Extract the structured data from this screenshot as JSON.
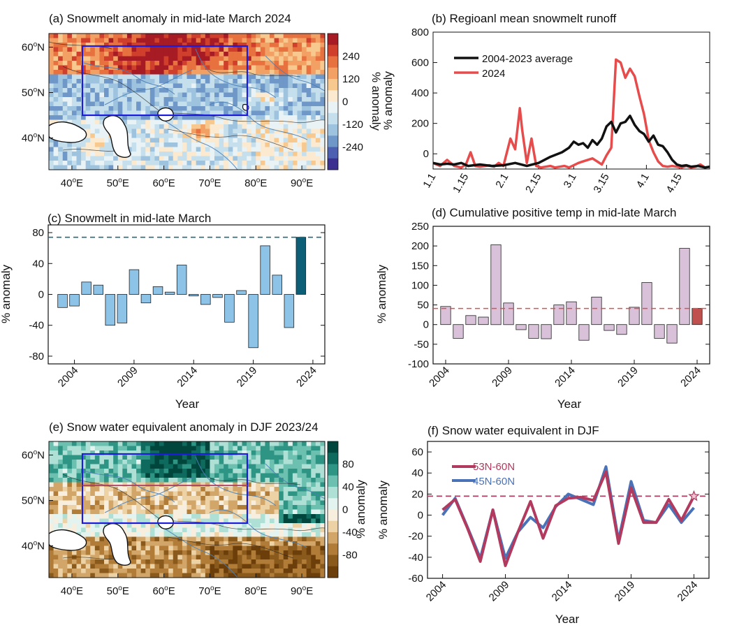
{
  "panel_a": {
    "title": "(a) Snowmelt anomaly in mid-late March 2024",
    "lat_labels": [
      "60",
      "50",
      "40"
    ],
    "lon_labels": [
      "40",
      "50",
      "60",
      "70",
      "80",
      "90"
    ],
    "colorbar_label": "% anomaly",
    "colorbar_ticks": [
      "240",
      "120",
      "0",
      "-120",
      "-240"
    ],
    "colors": [
      "#3b2f8f",
      "#4c5fb0",
      "#6f97c8",
      "#9dc3df",
      "#c6dfec",
      "#e9f2f5",
      "#fbead0",
      "#f7c98f",
      "#f2a063",
      "#e7713f",
      "#cf3f2c",
      "#a71b25"
    ]
  },
  "panel_b": {
    "title": "(b) Regioanl mean snowmelt runoff",
    "ylabel": "% anomaly",
    "yticks": [
      "800",
      "600",
      "400",
      "200",
      "0"
    ],
    "xticks": [
      "1.1",
      "1.15",
      "2.1",
      "2.15",
      "3.1",
      "3.15",
      "4.1",
      "4.15"
    ],
    "legend": [
      "2004-2023 average",
      "2024"
    ],
    "colors": {
      "average": "#111111",
      "y2024": "#e74c4c"
    }
  },
  "panel_e": {
    "title": "(e) Snow water equivalent anomaly in DJF 2023/24",
    "lat_labels": [
      "60",
      "50",
      "40"
    ],
    "lon_labels": [
      "40",
      "50",
      "60",
      "70",
      "80",
      "90"
    ],
    "colorbar_label": "% anomaly",
    "colorbar_ticks": [
      "80",
      "40",
      "0",
      "-40",
      "-80"
    ],
    "colors": [
      "#6b3e0a",
      "#8a5a1c",
      "#b07c38",
      "#d2a668",
      "#ecd2a4",
      "#f8eedd",
      "#e3f3ef",
      "#aee0d6",
      "#6cc0b0",
      "#2e9585",
      "#0f6a5e",
      "#01463d"
    ]
  },
  "chart_data": [
    {
      "panel": "a",
      "type": "heatmap",
      "title": "(a) Snowmelt anomaly in mid-late March 2024",
      "x_range": [
        35,
        95
      ],
      "y_range": [
        33,
        63
      ],
      "colorbar_range": [
        -300,
        300
      ],
      "colorbar_label": "% anomaly",
      "box": {
        "lon": [
          42,
          78
        ],
        "lat": [
          45,
          60
        ]
      }
    },
    {
      "panel": "b",
      "type": "line",
      "title": "(b) Regioanl mean snowmelt runoff",
      "ylabel": "% anomaly",
      "ylim": [
        -100,
        800
      ],
      "x_day_range": [
        0,
        118
      ],
      "series": [
        {
          "name": "2004-2023 average",
          "x": [
            0,
            3,
            6,
            9,
            12,
            15,
            20,
            25,
            30,
            35,
            40,
            45,
            50,
            55,
            58,
            60,
            62,
            64,
            66,
            68,
            70,
            72,
            74,
            76,
            78,
            80,
            82,
            84,
            86,
            88,
            90,
            92,
            94,
            96,
            98,
            100,
            102,
            104,
            106,
            108,
            110,
            113,
            116,
            118
          ],
          "y": [
            -60,
            -70,
            -65,
            -70,
            -60,
            -80,
            -70,
            -80,
            -75,
            -60,
            -80,
            -60,
            -20,
            10,
            40,
            80,
            60,
            70,
            40,
            90,
            60,
            100,
            180,
            210,
            140,
            200,
            210,
            250,
            190,
            150,
            130,
            80,
            120,
            60,
            50,
            10,
            -40,
            -70,
            -80,
            -75,
            -85,
            -80,
            -90,
            -85
          ]
        },
        {
          "name": "2024",
          "x": [
            0,
            3,
            6,
            9,
            12,
            14,
            16,
            18,
            20,
            22,
            24,
            26,
            28,
            30,
            33,
            35,
            37,
            38,
            40,
            42,
            44,
            46,
            48,
            50,
            52,
            54,
            56,
            58,
            60,
            62,
            64,
            66,
            68,
            70,
            72,
            74,
            76,
            78,
            80,
            82,
            84,
            86,
            88,
            90,
            92,
            94,
            96,
            98,
            100,
            102,
            104,
            106,
            108,
            110,
            112,
            114,
            116,
            118
          ],
          "y": [
            -60,
            -80,
            -40,
            -80,
            -90,
            -70,
            10,
            -80,
            -85,
            -80,
            -75,
            -85,
            -60,
            -80,
            100,
            30,
            300,
            160,
            -60,
            100,
            -80,
            -90,
            -85,
            -80,
            -90,
            -85,
            -80,
            -90,
            -75,
            -60,
            -50,
            -40,
            -30,
            -50,
            -70,
            -10,
            40,
            620,
            600,
            500,
            560,
            510,
            380,
            260,
            90,
            10,
            -50,
            -80,
            -85,
            -80,
            -85,
            -90,
            -80,
            -90,
            -85,
            -70,
            -90,
            -85
          ]
        }
      ]
    },
    {
      "panel": "c",
      "type": "bar",
      "title": "(c) Snowmelt in mid-late March",
      "xlabel": "Year",
      "ylabel": "% anomaly",
      "ylim": [
        -90,
        90
      ],
      "yticks": [
        80,
        40,
        0,
        -40,
        -80
      ],
      "xticks": [
        2004,
        2009,
        2014,
        2019,
        2024
      ],
      "categories": [
        2003,
        2004,
        2005,
        2006,
        2007,
        2008,
        2009,
        2010,
        2011,
        2012,
        2013,
        2014,
        2015,
        2016,
        2017,
        2018,
        2019,
        2020,
        2021,
        2022,
        2023,
        2024
      ],
      "values": [
        -17,
        -15,
        16,
        12,
        -40,
        -37,
        32,
        -11,
        10,
        3,
        38,
        -2,
        -13,
        -4,
        -36,
        5,
        -69,
        63,
        25,
        -43,
        74,
        0
      ],
      "highlight_index": 20,
      "reference_line": 74,
      "bar_color": "#8ec3e8",
      "highlight_color": "#0d5f78",
      "line_color": "#1f6f80"
    },
    {
      "panel": "d",
      "type": "bar",
      "title": "(d) Cumulative positive temp in mid-late March",
      "xlabel": "Year",
      "ylabel": "% anomaly",
      "ylim": [
        -100,
        250
      ],
      "yticks": [
        250,
        200,
        150,
        100,
        50,
        0,
        -50,
        -100
      ],
      "xticks": [
        2004,
        2009,
        2014,
        2019,
        2024
      ],
      "categories": [
        2004,
        2005,
        2006,
        2007,
        2008,
        2009,
        2010,
        2011,
        2012,
        2013,
        2014,
        2015,
        2016,
        2017,
        2018,
        2019,
        2020,
        2021,
        2022,
        2023,
        2024
      ],
      "values": [
        46,
        -35,
        23,
        19,
        203,
        55,
        -13,
        -35,
        -36,
        50,
        58,
        -40,
        70,
        -15,
        -25,
        44,
        107,
        -35,
        -47,
        194,
        41
      ],
      "highlight_index": 20,
      "reference_line": 41,
      "bar_color": "#d8c1d9",
      "highlight_color": "#c0504d",
      "line_color": "#d9534f"
    },
    {
      "panel": "e",
      "type": "heatmap",
      "title": "(e) Snow water equivalent anomaly in DJF 2023/24",
      "x_range": [
        35,
        95
      ],
      "y_range": [
        33,
        63
      ],
      "colorbar_range": [
        -100,
        100
      ],
      "colorbar_label": "% anomaly",
      "box": {
        "lon": [
          42,
          78
        ],
        "lat": [
          45,
          60
        ]
      },
      "inner_line_lat": 53
    },
    {
      "panel": "f",
      "type": "line",
      "title": "(f) Snow water equivalent in DJF",
      "xlabel": "Year",
      "ylabel": "% anomaly",
      "ylim": [
        -60,
        70
      ],
      "yticks": [
        60,
        40,
        20,
        0,
        -20,
        -40,
        -60
      ],
      "xticks": [
        2004,
        2009,
        2014,
        2019,
        2024
      ],
      "reference_line": 18,
      "x": [
        2004,
        2005,
        2006,
        2007,
        2008,
        2009,
        2010,
        2011,
        2012,
        2013,
        2014,
        2015,
        2016,
        2017,
        2018,
        2019,
        2020,
        2021,
        2022,
        2023,
        2024
      ],
      "series": [
        {
          "name": "53N-60N",
          "color": "#b23a5e",
          "values": [
            5,
            15,
            -13,
            -44,
            5,
            -48,
            -16,
            13,
            -22,
            9,
            16,
            17,
            14,
            41,
            -27,
            26,
            -7,
            -7,
            15,
            -5,
            18
          ]
        },
        {
          "name": "45N-60N",
          "color": "#4a72b8",
          "values": [
            0,
            16,
            -12,
            -41,
            5,
            -41,
            -16,
            -2,
            -12,
            8,
            20,
            15,
            10,
            46,
            -24,
            32,
            -5,
            -7,
            10,
            -7,
            7
          ]
        }
      ],
      "star_value": 18
    }
  ]
}
